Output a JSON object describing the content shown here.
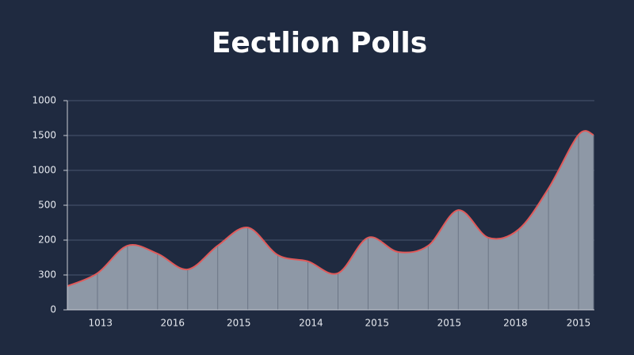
{
  "chart_data": {
    "type": "area",
    "title": "Eectlion Polls",
    "x": [
      0,
      1,
      2,
      3,
      4,
      5,
      6,
      7,
      8,
      9,
      10,
      11,
      12,
      13,
      14,
      15,
      16,
      17,
      17.5
    ],
    "series": [
      {
        "color": "#e05a5a",
        "values": [
          0.68,
          1.05,
          1.84,
          1.61,
          1.16,
          1.84,
          2.36,
          1.57,
          1.39,
          1.05,
          2.07,
          1.66,
          1.84,
          2.86,
          2.07,
          2.3,
          3.48,
          5.02,
          5.02
        ]
      }
    ],
    "fill": "#8e98a6",
    "xlim": [
      0,
      17.5
    ],
    "xticks": [
      {
        "value": 1.1,
        "label": "1013"
      },
      {
        "value": 3.5,
        "label": "2016"
      },
      {
        "value": 5.7,
        "label": "2015"
      },
      {
        "value": 8.1,
        "label": "2014"
      },
      {
        "value": 10.3,
        "label": "2015"
      },
      {
        "value": 12.7,
        "label": "2015"
      },
      {
        "value": 14.9,
        "label": "2018"
      },
      {
        "value": 17,
        "label": "2015"
      }
    ],
    "ylim": [
      0,
      6
    ],
    "yticks": [
      {
        "value": 0,
        "label": "0"
      },
      {
        "value": 1,
        "label": "300"
      },
      {
        "value": 2,
        "label": "200"
      },
      {
        "value": 3,
        "label": "500"
      },
      {
        "value": 4,
        "label": "1000"
      },
      {
        "value": 5,
        "label": "1500"
      },
      {
        "value": 6,
        "label": "1000"
      }
    ],
    "grid": true
  }
}
